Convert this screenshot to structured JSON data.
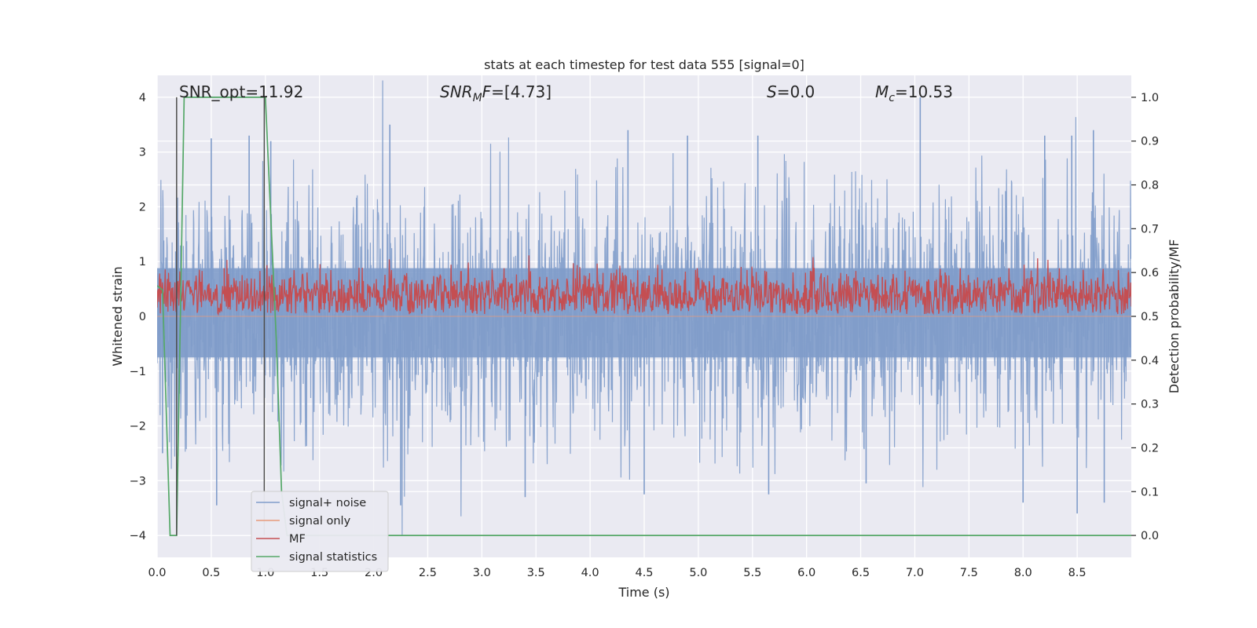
{
  "chart_data": {
    "type": "line",
    "title": "stats at each timestep for test data 555 [signal=0]",
    "xlabel": "Time (s)",
    "ylabel": "Whitened strain",
    "ylabel_right": "Detection probability/MF",
    "xlim": [
      0.0,
      9.0
    ],
    "ylim": [
      -4.4,
      4.4
    ],
    "ylim_right": [
      -0.05,
      1.05
    ],
    "xticks": [
      0.0,
      0.5,
      1.0,
      1.5,
      2.0,
      2.5,
      3.0,
      3.5,
      4.0,
      4.5,
      5.0,
      5.5,
      6.0,
      6.5,
      7.0,
      7.5,
      8.0,
      8.5
    ],
    "xtick_labels": [
      "0.0",
      "0.5",
      "1.0",
      "1.5",
      "2.0",
      "2.5",
      "3.0",
      "3.5",
      "4.0",
      "4.5",
      "5.0",
      "5.5",
      "6.0",
      "6.5",
      "7.0",
      "7.5",
      "8.0",
      "8.5"
    ],
    "yticks": [
      -4,
      -3,
      -2,
      -1,
      0,
      1,
      2,
      3,
      4
    ],
    "ytick_labels": [
      "−4",
      "−3",
      "−2",
      "−1",
      "0",
      "1",
      "2",
      "3",
      "4"
    ],
    "yticks_right": [
      0.0,
      0.1,
      0.2,
      0.3,
      0.4,
      0.5,
      0.6,
      0.7,
      0.8,
      0.9,
      1.0
    ],
    "ytick_labels_right": [
      "0.0",
      "0.1",
      "0.2",
      "0.3",
      "0.4",
      "0.5",
      "0.6",
      "0.7",
      "0.8",
      "0.9",
      "1.0"
    ],
    "grid": true,
    "legend_position": "lower-left",
    "annotations": [
      {
        "id": "snr-opt",
        "parts": [
          {
            "t": "SNR_opt=11.92",
            "style": "normal"
          }
        ]
      },
      {
        "id": "snr-mf",
        "parts": [
          {
            "t": "SNR",
            "style": "italic"
          },
          {
            "t": "M",
            "style": "italic-sub"
          },
          {
            "t": "F",
            "style": "italic"
          },
          {
            "t": "=[4.73]",
            "style": "normal"
          }
        ]
      },
      {
        "id": "s-stat",
        "parts": [
          {
            "t": "S",
            "style": "italic"
          },
          {
            "t": "=0.0",
            "style": "normal"
          }
        ]
      },
      {
        "id": "mc",
        "parts": [
          {
            "t": "M",
            "style": "italic"
          },
          {
            "t": "c",
            "style": "italic-sub"
          },
          {
            "t": "=10.53",
            "style": "normal"
          }
        ]
      }
    ],
    "series": [
      {
        "name": "signal+ noise",
        "axis": "left",
        "color": "#7f9cca",
        "style": "dense-noise",
        "x_range": [
          0.0,
          9.0
        ],
        "typical_envelope": [
          -1.5,
          1.6
        ],
        "peak_spikes": [
          {
            "x": 0.5,
            "y": 3.25
          },
          {
            "x": 0.85,
            "y": 3.3
          },
          {
            "x": 1.05,
            "y": 3.2
          },
          {
            "x": 2.15,
            "y": 3.5
          },
          {
            "x": 4.35,
            "y": 3.4
          },
          {
            "x": 4.9,
            "y": 3.3
          },
          {
            "x": 5.55,
            "y": 3.3
          },
          {
            "x": 7.05,
            "y": 4.0
          },
          {
            "x": 8.2,
            "y": 3.3
          },
          {
            "x": 8.45,
            "y": 3.3
          },
          {
            "x": 8.65,
            "y": 3.4
          }
        ],
        "trough_spikes": [
          {
            "x": 0.05,
            "y": -2.5
          },
          {
            "x": 0.55,
            "y": -3.45
          },
          {
            "x": 2.25,
            "y": -3.45
          },
          {
            "x": 3.4,
            "y": -3.3
          },
          {
            "x": 4.5,
            "y": -3.25
          },
          {
            "x": 5.65,
            "y": -3.25
          },
          {
            "x": 6.55,
            "y": -3.05
          },
          {
            "x": 8.0,
            "y": -3.4
          },
          {
            "x": 8.5,
            "y": -3.6
          },
          {
            "x": 8.75,
            "y": -3.4
          }
        ]
      },
      {
        "name": "signal only",
        "axis": "left",
        "color": "#e89a7a",
        "x": [
          0.0,
          9.0
        ],
        "y": [
          0.0,
          0.0
        ]
      },
      {
        "name": "MF",
        "axis": "right",
        "color": "#c44e52",
        "style": "noisy-band",
        "x_range": [
          0.0,
          9.0
        ],
        "typical_band": [
          0.52,
          0.58
        ],
        "peak_spikes": [
          {
            "x": 0.62,
            "y": 0.61
          },
          {
            "x": 6.7,
            "y": 0.59
          },
          {
            "x": 7.28,
            "y": 0.6
          }
        ]
      },
      {
        "name": "signal statistics",
        "axis": "right",
        "color": "#55a868",
        "x": [
          0.0,
          0.05,
          0.12,
          0.18,
          0.25,
          0.6,
          1.0,
          1.1,
          1.15,
          1.2,
          9.0
        ],
        "y": [
          0.57,
          0.56,
          0.0,
          0.0,
          1.0,
          1.0,
          1.0,
          0.45,
          0.1,
          0.0,
          0.0
        ]
      }
    ],
    "vertical_lines": [
      {
        "x": 0.18,
        "y_range": [
          -4.0,
          4.0
        ],
        "color": "#4c4c4c"
      },
      {
        "x": 0.99,
        "y_range": [
          -4.0,
          4.0
        ],
        "color": "#4c4c4c"
      }
    ]
  }
}
